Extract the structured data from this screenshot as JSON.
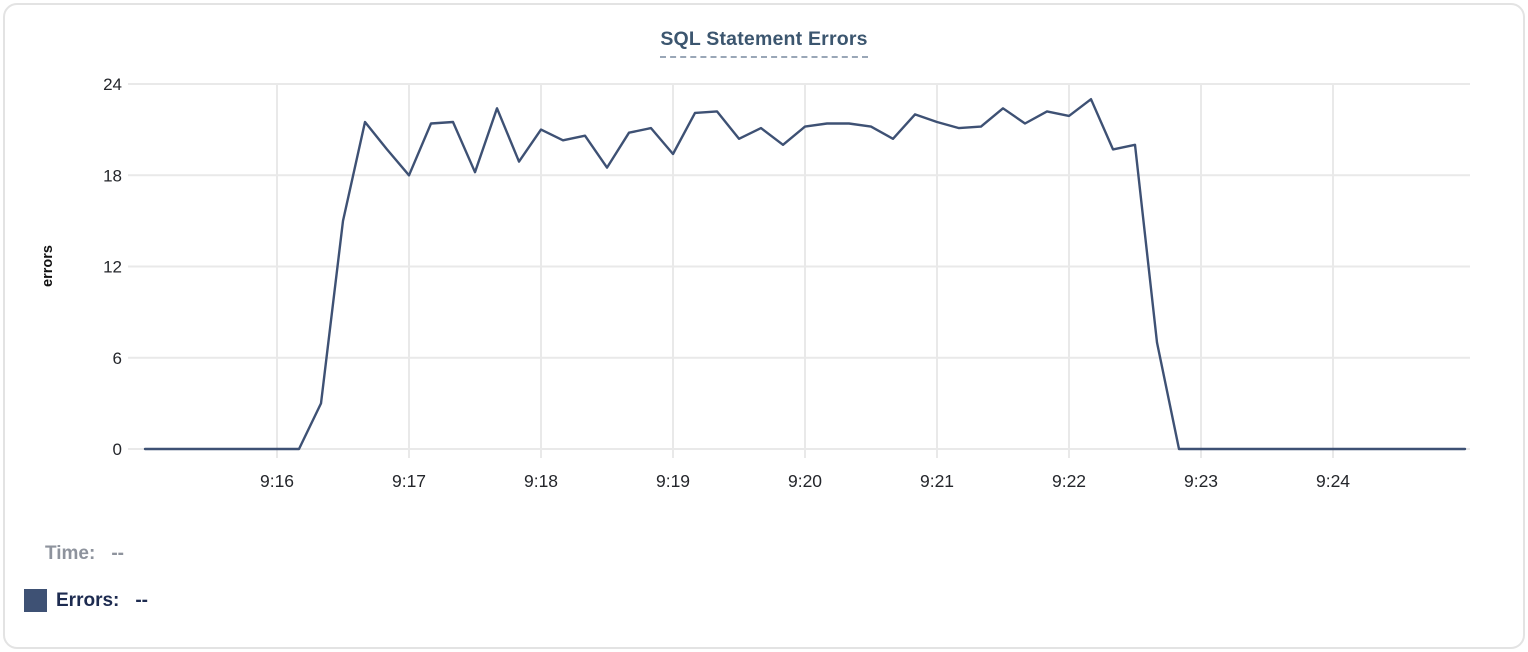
{
  "window": {
    "background": "#ffffff",
    "card_border_color": "#e3e3e3"
  },
  "colors": {
    "line": "#3e5174",
    "grid": "#e9e9e9",
    "title": "#3c566f",
    "title_underline": "#9aa7b7",
    "tick_label": "#24262b",
    "axis_label": "#111111",
    "tooltip_time": "#8e939d",
    "tooltip_errors": "#1d2b50"
  },
  "chart_data": {
    "type": "line",
    "title": "SQL Statement Errors",
    "xlabel": "",
    "ylabel": "errors",
    "ylim": [
      0,
      24
    ],
    "yticks": [
      0,
      6,
      12,
      18,
      24
    ],
    "x_tick_labels": [
      "9:16",
      "9:17",
      "9:18",
      "9:19",
      "9:20",
      "9:21",
      "9:22",
      "9:23",
      "9:24"
    ],
    "x_range": [
      "9:15:00",
      "9:25:00"
    ],
    "grid": true,
    "legend_position": "below-left",
    "x": [
      "9:15:00",
      "9:15:10",
      "9:15:20",
      "9:15:30",
      "9:15:40",
      "9:15:50",
      "9:16:00",
      "9:16:10",
      "9:16:20",
      "9:16:30",
      "9:16:40",
      "9:16:50",
      "9:17:00",
      "9:17:10",
      "9:17:20",
      "9:17:30",
      "9:17:40",
      "9:17:50",
      "9:18:00",
      "9:18:10",
      "9:18:20",
      "9:18:30",
      "9:18:40",
      "9:18:50",
      "9:19:00",
      "9:19:10",
      "9:19:20",
      "9:19:30",
      "9:19:40",
      "9:19:50",
      "9:20:00",
      "9:20:10",
      "9:20:20",
      "9:20:30",
      "9:20:40",
      "9:20:50",
      "9:21:00",
      "9:21:10",
      "9:21:20",
      "9:21:30",
      "9:21:40",
      "9:21:50",
      "9:22:00",
      "9:22:10",
      "9:22:20",
      "9:22:30",
      "9:22:40",
      "9:22:50",
      "9:23:00",
      "9:23:10",
      "9:23:20",
      "9:23:30",
      "9:23:40",
      "9:23:50",
      "9:24:00",
      "9:24:10",
      "9:24:20",
      "9:24:30",
      "9:24:40",
      "9:24:50",
      "9:25:00"
    ],
    "series": [
      {
        "name": "Errors",
        "values": [
          0,
          0,
          0,
          0,
          0,
          0,
          0,
          0,
          3,
          15,
          21.5,
          19.7,
          18,
          21.4,
          21.5,
          18.2,
          22.4,
          18.9,
          21,
          20.3,
          20.6,
          18.5,
          20.8,
          21.1,
          19.4,
          22.1,
          22.2,
          20.4,
          21.1,
          20,
          21.2,
          21.4,
          21.4,
          21.2,
          20.4,
          22,
          21.5,
          21.1,
          21.2,
          22.4,
          21.4,
          22.2,
          21.9,
          23,
          19.7,
          20,
          7,
          0,
          0,
          0,
          0,
          0,
          0,
          0,
          0,
          0,
          0,
          0,
          0,
          0,
          0
        ]
      }
    ]
  },
  "tooltip": {
    "time_label": "Time:",
    "time_value": "--",
    "errors_label": "Errors:",
    "errors_value": "--"
  }
}
